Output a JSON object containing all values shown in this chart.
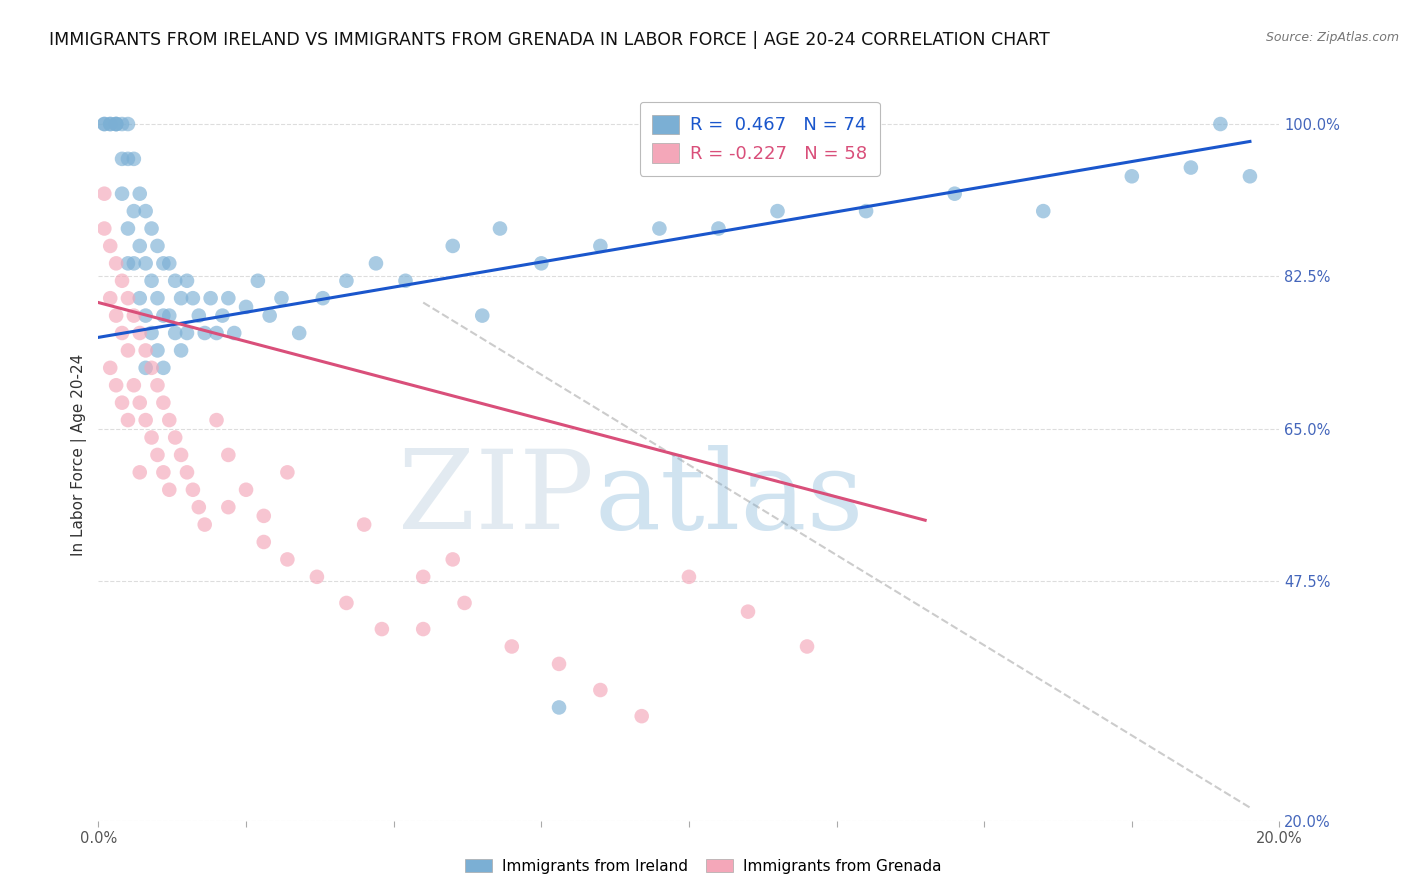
{
  "title": "IMMIGRANTS FROM IRELAND VS IMMIGRANTS FROM GRENADA IN LABOR FORCE | AGE 20-24 CORRELATION CHART",
  "source": "Source: ZipAtlas.com",
  "ylabel": "In Labor Force | Age 20-24",
  "xlim": [
    0.0,
    0.2
  ],
  "ylim": [
    0.2,
    1.04
  ],
  "y_ticks_right": [
    1.0,
    0.825,
    0.65,
    0.475,
    0.2
  ],
  "y_tick_labels_right": [
    "100.0%",
    "82.5%",
    "65.0%",
    "47.5%",
    "20.0%"
  ],
  "legend_blue_r": "R =  0.467",
  "legend_blue_n": "N = 74",
  "legend_pink_r": "R = -0.227",
  "legend_pink_n": "N = 58",
  "blue_color": "#7BAFD4",
  "pink_color": "#F4A7B9",
  "trend_blue_color": "#1A56CC",
  "trend_pink_color": "#D94F7A",
  "trend_gray_color": "#CCCCCC",
  "watermark": "ZIPatlas",
  "watermark_zip_color": "#B8CCDD",
  "watermark_atlas_color": "#7BAFD4",
  "title_fontsize": 12.5,
  "axis_label_fontsize": 11,
  "tick_fontsize": 10.5,
  "legend_fontsize": 13,
  "blue_scatter_x": [
    0.001,
    0.001,
    0.002,
    0.002,
    0.003,
    0.003,
    0.003,
    0.004,
    0.004,
    0.004,
    0.005,
    0.005,
    0.005,
    0.005,
    0.006,
    0.006,
    0.006,
    0.007,
    0.007,
    0.007,
    0.008,
    0.008,
    0.008,
    0.008,
    0.009,
    0.009,
    0.009,
    0.01,
    0.01,
    0.01,
    0.011,
    0.011,
    0.011,
    0.012,
    0.012,
    0.013,
    0.013,
    0.014,
    0.014,
    0.015,
    0.015,
    0.016,
    0.017,
    0.018,
    0.019,
    0.02,
    0.021,
    0.022,
    0.023,
    0.025,
    0.027,
    0.029,
    0.031,
    0.034,
    0.038,
    0.042,
    0.047,
    0.052,
    0.06,
    0.068,
    0.075,
    0.085,
    0.095,
    0.105,
    0.115,
    0.13,
    0.145,
    0.16,
    0.175,
    0.185,
    0.19,
    0.195,
    0.065,
    0.078
  ],
  "blue_scatter_y": [
    1.0,
    1.0,
    1.0,
    1.0,
    1.0,
    1.0,
    1.0,
    1.0,
    0.96,
    0.92,
    1.0,
    0.96,
    0.88,
    0.84,
    0.96,
    0.9,
    0.84,
    0.92,
    0.86,
    0.8,
    0.9,
    0.84,
    0.78,
    0.72,
    0.88,
    0.82,
    0.76,
    0.86,
    0.8,
    0.74,
    0.84,
    0.78,
    0.72,
    0.84,
    0.78,
    0.82,
    0.76,
    0.8,
    0.74,
    0.82,
    0.76,
    0.8,
    0.78,
    0.76,
    0.8,
    0.76,
    0.78,
    0.8,
    0.76,
    0.79,
    0.82,
    0.78,
    0.8,
    0.76,
    0.8,
    0.82,
    0.84,
    0.82,
    0.86,
    0.88,
    0.84,
    0.86,
    0.88,
    0.88,
    0.9,
    0.9,
    0.92,
    0.9,
    0.94,
    0.95,
    1.0,
    0.94,
    0.78,
    0.33
  ],
  "pink_scatter_x": [
    0.001,
    0.001,
    0.002,
    0.002,
    0.002,
    0.003,
    0.003,
    0.003,
    0.004,
    0.004,
    0.004,
    0.005,
    0.005,
    0.005,
    0.006,
    0.006,
    0.007,
    0.007,
    0.007,
    0.008,
    0.008,
    0.009,
    0.009,
    0.01,
    0.01,
    0.011,
    0.011,
    0.012,
    0.012,
    0.013,
    0.014,
    0.015,
    0.016,
    0.017,
    0.018,
    0.02,
    0.022,
    0.025,
    0.028,
    0.032,
    0.037,
    0.042,
    0.048,
    0.055,
    0.062,
    0.07,
    0.078,
    0.085,
    0.092,
    0.1,
    0.11,
    0.12,
    0.022,
    0.028,
    0.055,
    0.032,
    0.045,
    0.06
  ],
  "pink_scatter_y": [
    0.92,
    0.88,
    0.86,
    0.8,
    0.72,
    0.84,
    0.78,
    0.7,
    0.82,
    0.76,
    0.68,
    0.8,
    0.74,
    0.66,
    0.78,
    0.7,
    0.76,
    0.68,
    0.6,
    0.74,
    0.66,
    0.72,
    0.64,
    0.7,
    0.62,
    0.68,
    0.6,
    0.66,
    0.58,
    0.64,
    0.62,
    0.6,
    0.58,
    0.56,
    0.54,
    0.66,
    0.62,
    0.58,
    0.55,
    0.5,
    0.48,
    0.45,
    0.42,
    0.48,
    0.45,
    0.4,
    0.38,
    0.35,
    0.32,
    0.48,
    0.44,
    0.4,
    0.56,
    0.52,
    0.42,
    0.6,
    0.54,
    0.5
  ],
  "blue_trend_x": [
    0.0,
    0.195
  ],
  "blue_trend_y": [
    0.755,
    0.98
  ],
  "pink_trend_x": [
    0.0,
    0.14
  ],
  "pink_trend_y": [
    0.795,
    0.545
  ],
  "gray_trend_x": [
    0.055,
    0.195
  ],
  "gray_trend_y": [
    0.795,
    0.215
  ]
}
